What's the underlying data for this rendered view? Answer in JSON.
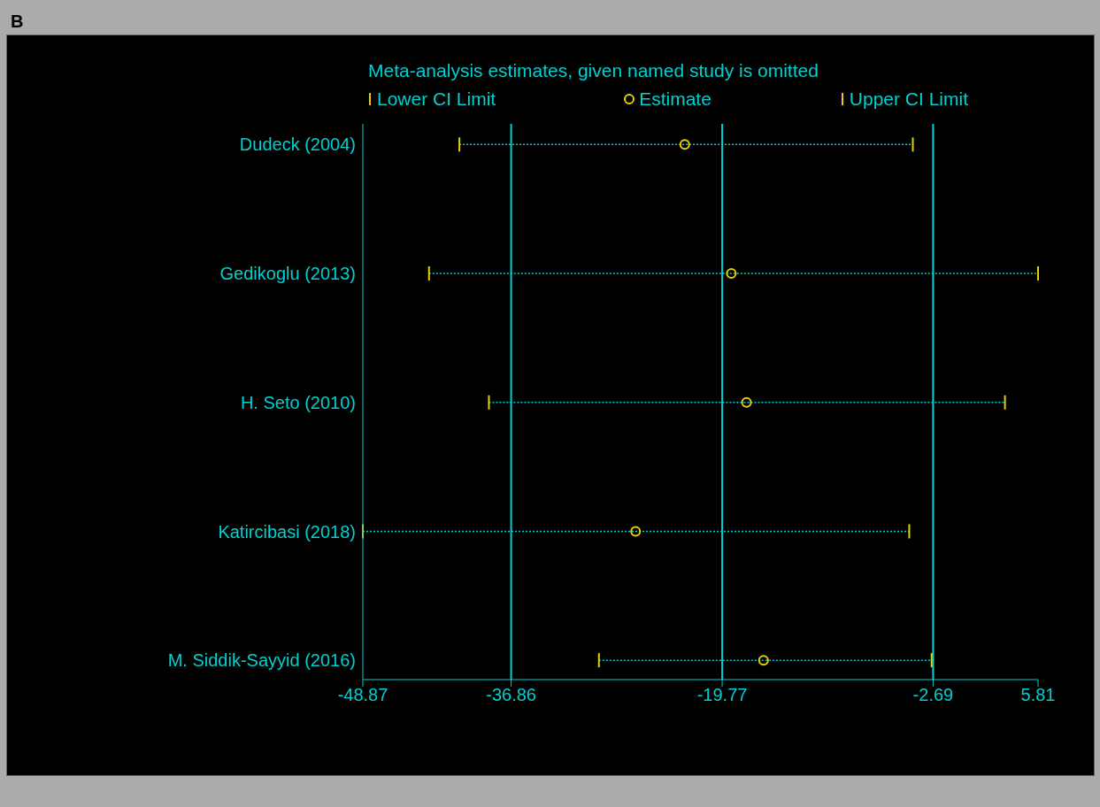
{
  "chart_data": {
    "type": "scatter",
    "orientation": "horizontal",
    "title": "Meta-analysis estimates, given named study is omitted",
    "annotations": [
      "B",
      "Lower CI Limit",
      "Upper CI Limit"
    ],
    "categories": [
      "Dudeck (2004)",
      "Gedikoglu (2013)",
      "H. Seto (2010)",
      "Katircibasi (2018)",
      "M. Siddik-Sayyid (2016)"
    ],
    "series": [
      {
        "name": "Estimate",
        "color": "#e8d000",
        "marker": "circle",
        "values": [
          -22.8,
          -19.03,
          -17.8,
          -26.78,
          -16.42
        ],
        "errors": [
          [
            -41.05,
            -4.33
          ],
          [
            -43.51,
            5.81
          ],
          [
            -38.66,
            3.13
          ],
          [
            -48.87,
            -4.62
          ],
          [
            -29.75,
            -2.81
          ]
        ]
      }
    ],
    "line_style": "dotted",
    "xlim": [
      -48.87,
      5.81
    ],
    "xticks": [
      -48.87,
      -36.86,
      -19.77,
      -2.69,
      5.81
    ],
    "ref_lines": [
      {
        "axis": "x",
        "value": -36.86,
        "color": "#00d0d0"
      },
      {
        "axis": "x",
        "value": -19.77,
        "color": "#00d0d0"
      },
      {
        "axis": "x",
        "value": -2.69,
        "color": "#00d0d0"
      }
    ],
    "legend": "top"
  }
}
